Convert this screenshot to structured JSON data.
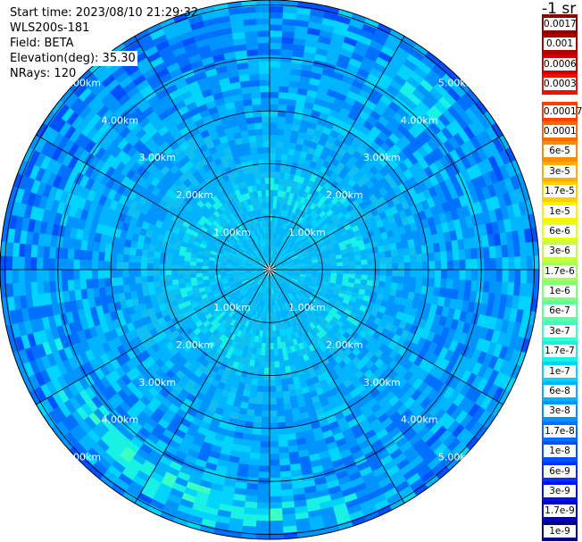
{
  "header": {
    "start_time": "Start time: 2023/08/10 21:29:32",
    "instrument": "WLS200s-181",
    "field": "Field: BETA",
    "elevation": "Elevation(deg): 35.30",
    "nrays": "NRays: 120"
  },
  "units": "-1 sr",
  "range_rings": [
    "1.00km",
    "2.00km",
    "3.00km",
    "4.00km",
    "5.00km"
  ],
  "colorbar": {
    "top": [
      {
        "label": "0.0017",
        "color": "#8b0000"
      },
      {
        "label": "0.001",
        "color": "#b00000"
      },
      {
        "label": "0.0006",
        "color": "#d40000"
      },
      {
        "label": "0.0003",
        "color": "#f01000"
      }
    ],
    "bottom": [
      {
        "label": "0.00017",
        "color": "#ff3c00"
      },
      {
        "label": "0.0001",
        "color": "#ff6a00"
      },
      {
        "label": "6e-5",
        "color": "#ff8c00"
      },
      {
        "label": "3e-5",
        "color": "#ffae00"
      },
      {
        "label": "1.7e-5",
        "color": "#ffd000"
      },
      {
        "label": "1e-5",
        "color": "#fff000"
      },
      {
        "label": "6e-6",
        "color": "#e6ff19"
      },
      {
        "label": "3e-6",
        "color": "#c4ff3a"
      },
      {
        "label": "1.7e-6",
        "color": "#a2ff5c"
      },
      {
        "label": "1e-6",
        "color": "#7fff7d"
      },
      {
        "label": "6e-7",
        "color": "#5cffa0"
      },
      {
        "label": "3e-7",
        "color": "#3affc4"
      },
      {
        "label": "1.7e-7",
        "color": "#19f0e6"
      },
      {
        "label": "1e-7",
        "color": "#00d4ff"
      },
      {
        "label": "6e-8",
        "color": "#00b4ff"
      },
      {
        "label": "3e-8",
        "color": "#0094ff"
      },
      {
        "label": "1.7e-8",
        "color": "#0070ff"
      },
      {
        "label": "1e-8",
        "color": "#0050ff"
      },
      {
        "label": "6e-9",
        "color": "#0030ff"
      },
      {
        "label": "3e-9",
        "color": "#0010ee"
      },
      {
        "label": "1.7e-9",
        "color": "#0000c4"
      },
      {
        "label": "1e-9",
        "color": "#00008b"
      }
    ]
  }
}
